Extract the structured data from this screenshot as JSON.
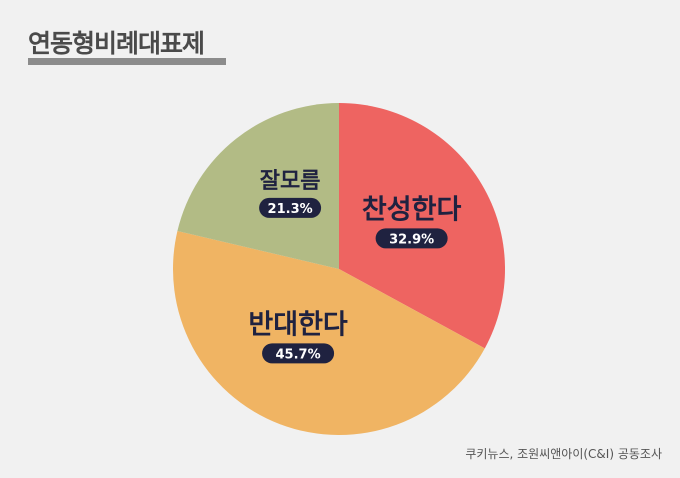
{
  "title": "연동형비례대표제",
  "source": "쿠키뉴스, 조원씨앤아이(C&I) 공동조사",
  "chart_data": {
    "type": "pie",
    "title": "연동형비례대표제",
    "slices": [
      {
        "label": "찬성한다",
        "value": 32.9,
        "display": "32.9%",
        "color": "#ee6461"
      },
      {
        "label": "반대한다",
        "value": 45.7,
        "display": "45.7%",
        "color": "#f0b463"
      },
      {
        "label": "잘모름",
        "value": 21.3,
        "display": "21.3%",
        "color": "#b2bb85"
      }
    ],
    "start": "12 o'clock",
    "direction": "clockwise"
  }
}
